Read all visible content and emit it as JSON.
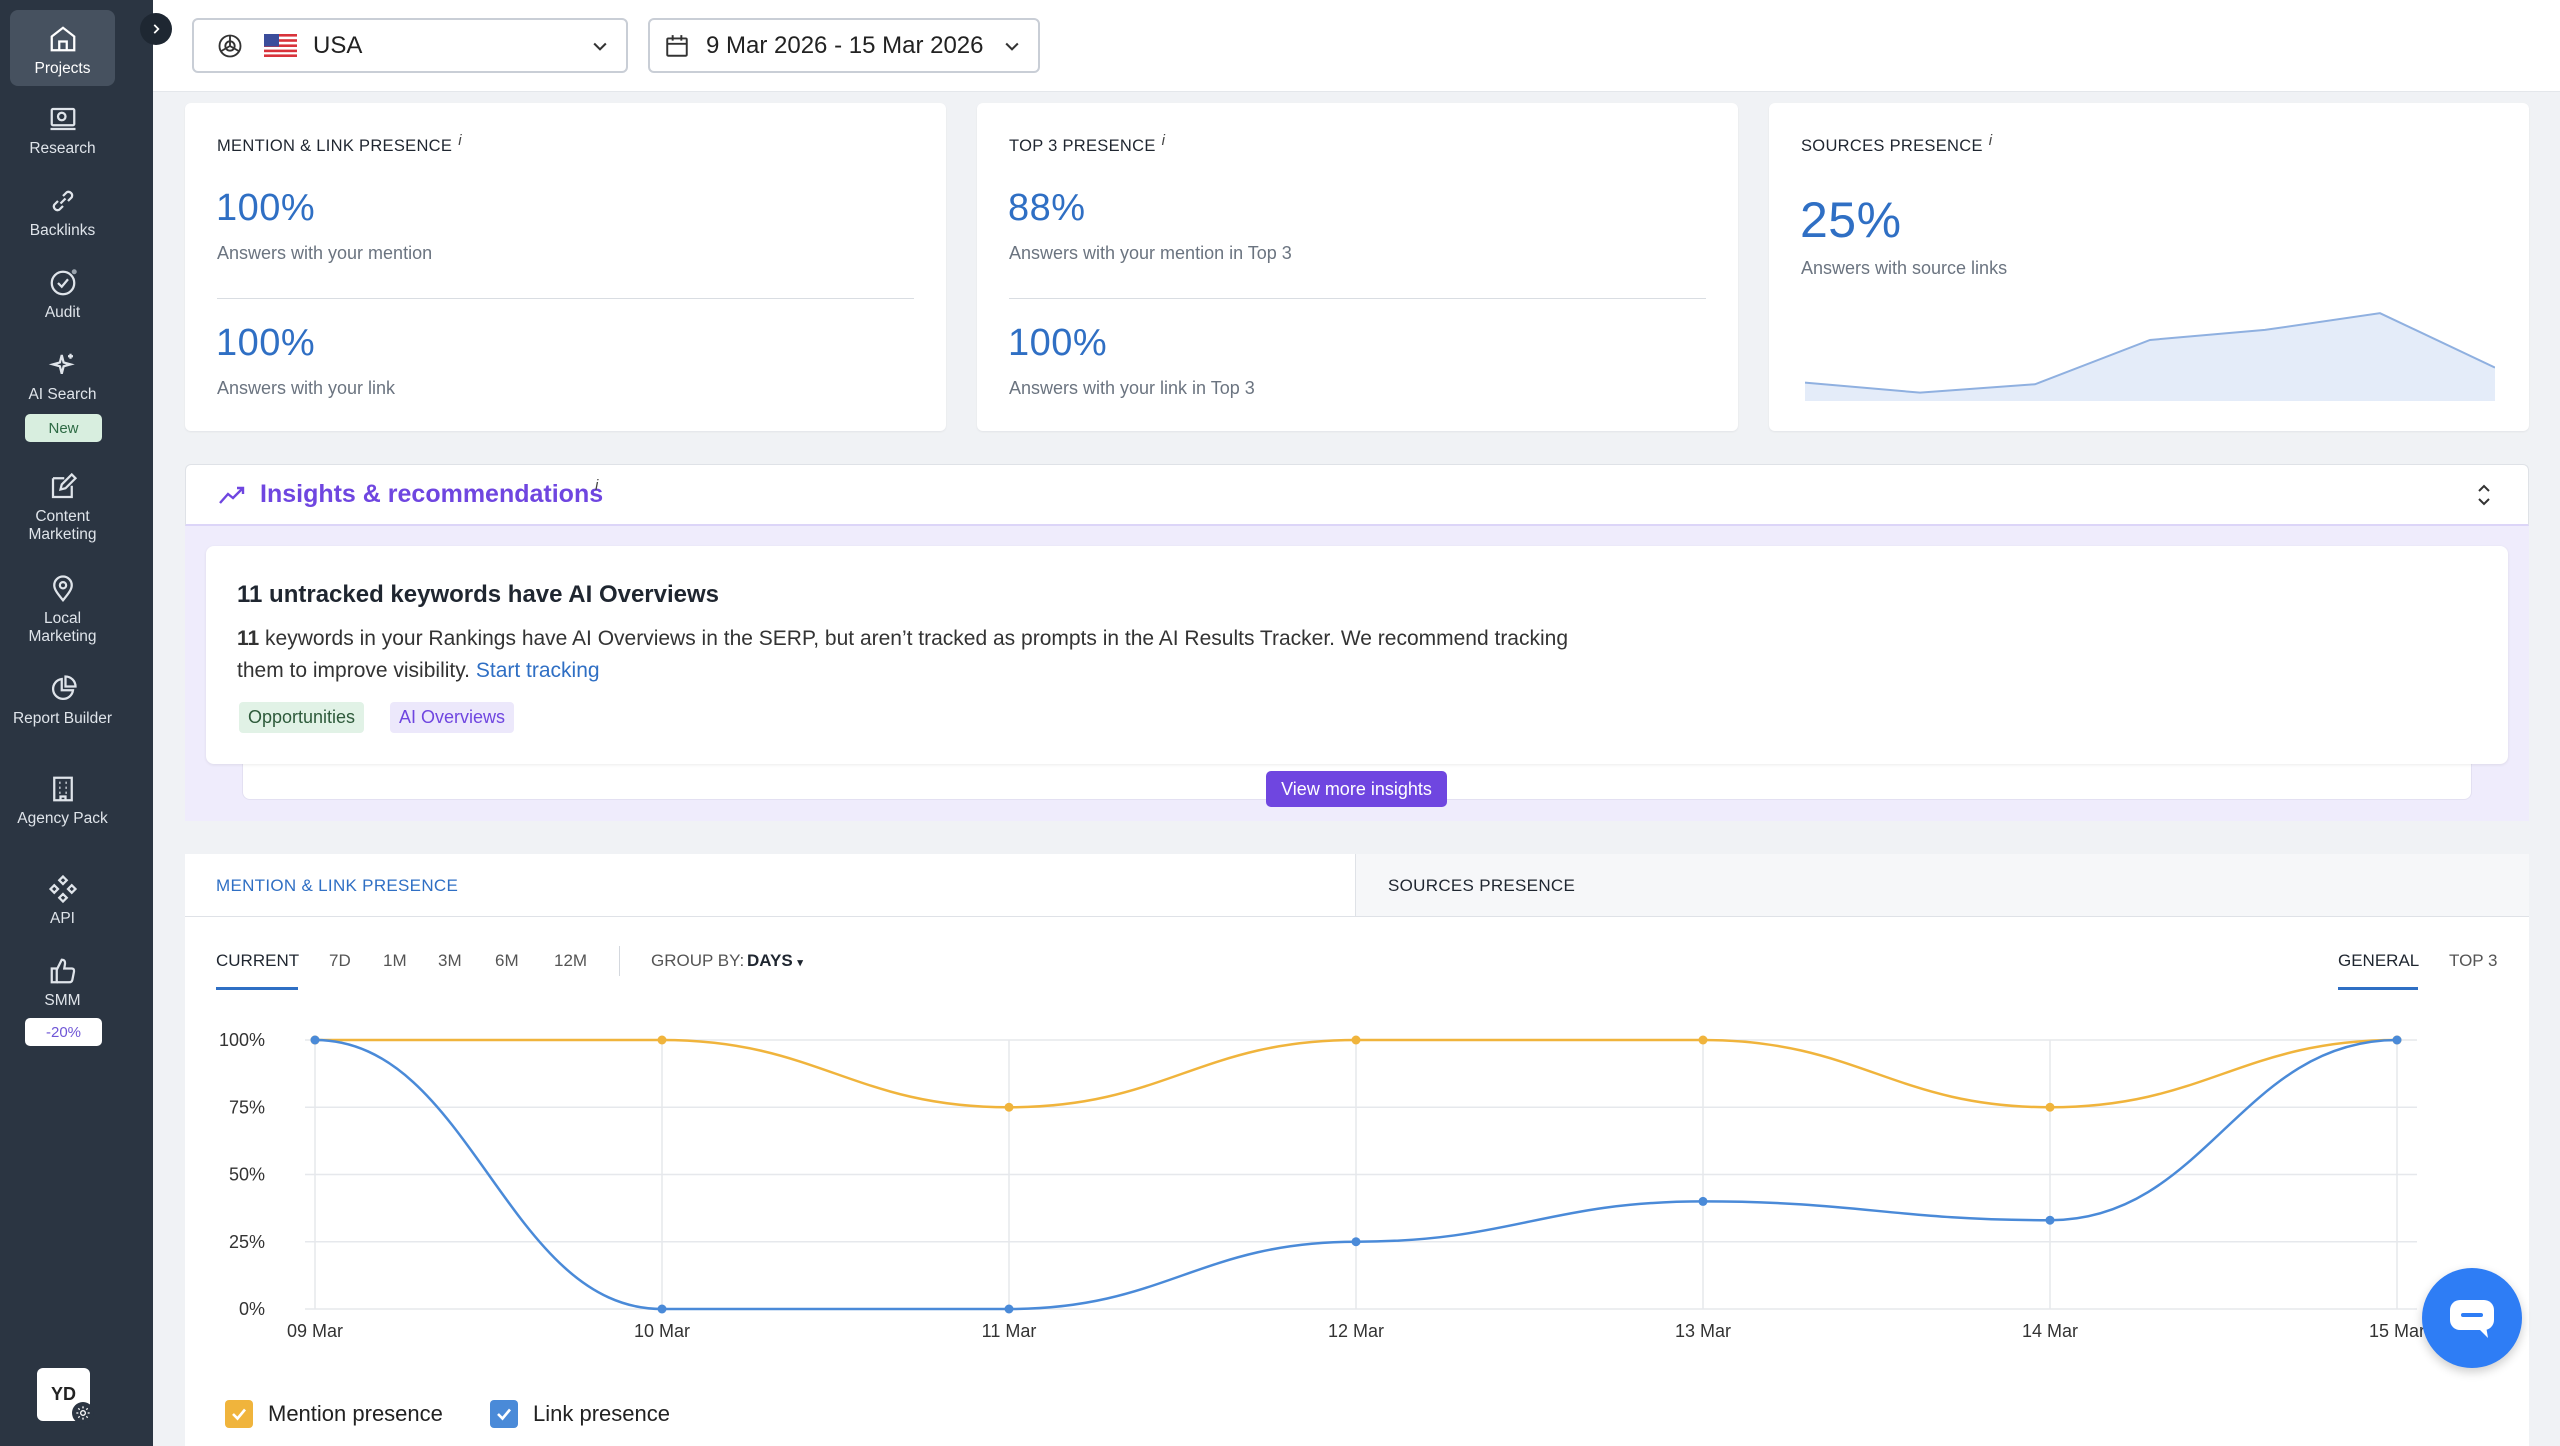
{
  "sidebar": {
    "items": [
      {
        "label": "Projects",
        "icon": "home-icon"
      },
      {
        "label": "Research",
        "icon": "research-icon"
      },
      {
        "label": "Backlinks",
        "icon": "link-icon"
      },
      {
        "label": "Audit",
        "icon": "check-circle-icon"
      },
      {
        "label": "AI Search",
        "icon": "sparkle-icon"
      },
      {
        "label": "Content Marketing",
        "icon": "edit-icon"
      },
      {
        "label": "Local Marketing",
        "icon": "pin-icon"
      },
      {
        "label": "Report Builder",
        "icon": "pie-icon"
      },
      {
        "label": "Agency Pack",
        "icon": "building-icon"
      },
      {
        "label": "API",
        "icon": "api-icon"
      },
      {
        "label": "SMM",
        "icon": "thumbs-up-icon"
      }
    ],
    "badges": {
      "ai_search": "New",
      "smm": "-20%"
    },
    "avatar": "YD"
  },
  "topbar": {
    "engine_icon": "openai-icon",
    "country": "USA",
    "date_range": "9 Mar 2026 - 15 Mar 2026"
  },
  "cards": {
    "mention_link": {
      "title": "MENTION & LINK PRESENCE",
      "info": "i",
      "value1": "100%",
      "label1": "Answers with your mention",
      "value2": "100%",
      "label2": "Answers with your link"
    },
    "top3": {
      "title": "TOP 3 PRESENCE",
      "info": "i",
      "value1": "88%",
      "label1": "Answers with your mention in Top 3",
      "value2": "100%",
      "label2": "Answers with your link in Top 3"
    },
    "sources": {
      "title": "SOURCES PRESENCE",
      "info": "i",
      "value": "25%",
      "label": "Answers with source links",
      "sparkline": [
        22,
        10,
        20,
        73,
        85,
        105,
        40
      ]
    }
  },
  "insights": {
    "title": "Insights & recommendations",
    "info": "i",
    "card_title": "11 untracked keywords have AI Overviews",
    "count": "11",
    "body": " keywords in your Rankings have AI Overviews in the SERP, but aren’t tracked as prompts in the AI Results Tracker. We recommend tracking",
    "body2": "them to improve visibility.",
    "link": "Start tracking",
    "tags": [
      "Opportunities",
      "AI Overviews"
    ],
    "view_more": "View more insights"
  },
  "chart_panel": {
    "tabs": [
      "MENTION & LINK PRESENCE",
      "SOURCES PRESENCE"
    ],
    "ranges": [
      "CURRENT",
      "7D",
      "1M",
      "3M",
      "6M",
      "12M"
    ],
    "group_by_label": "GROUP BY:",
    "group_by_value": "DAYS",
    "views": [
      "GENERAL",
      "TOP 3"
    ]
  },
  "chart_data": {
    "type": "line",
    "x": [
      "09 Mar",
      "10 Mar",
      "11 Mar",
      "12 Mar",
      "13 Mar",
      "14 Mar",
      "15 Mar"
    ],
    "y_ticks": [
      "100%",
      "75%",
      "50%",
      "25%",
      "0%"
    ],
    "ylim": [
      0,
      100
    ],
    "series": [
      {
        "name": "Mention presence",
        "color": "#f0b43c",
        "values": [
          100,
          100,
          75,
          100,
          100,
          75,
          100
        ]
      },
      {
        "name": "Link presence",
        "color": "#4a8ad8",
        "values": [
          100,
          0,
          0,
          25,
          40,
          33,
          100
        ]
      }
    ]
  },
  "colors": {
    "accent": "#2f6fc4",
    "purple": "#6f46e0",
    "sidebar": "#2b3542"
  }
}
